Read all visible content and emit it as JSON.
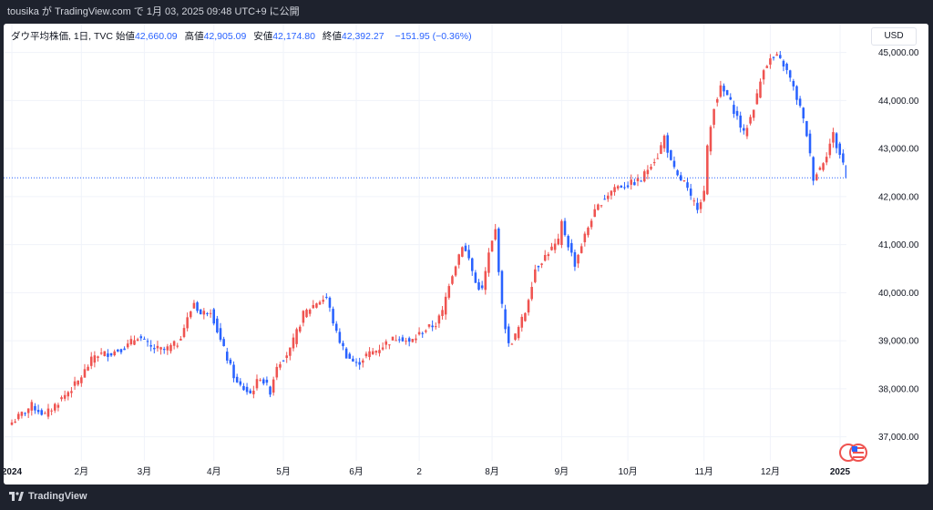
{
  "header": {
    "share_text": "tousika が TradingView.com で 1月 03, 2025 09:48 UTC+9 に公開"
  },
  "legend": {
    "symbol_text": "ダウ平均株価, 1日, TVC",
    "open_label": "始値",
    "open_value": "42,660.09",
    "high_label": "高値",
    "high_value": "42,905.09",
    "low_label": "安値",
    "low_value": "42,174.80",
    "close_label": "終値",
    "close_value": "42,392.27",
    "change_value": "−151.95 (−0.36%)"
  },
  "currency_label": "USD",
  "footer": {
    "brand": "TradingView"
  },
  "colors": {
    "up": "#ef5350",
    "down": "#2962ff",
    "background": "#1e222d",
    "panel": "#ffffff"
  },
  "chart_data": {
    "type": "candlestick",
    "symbol": "DJI",
    "last_price": 42392.27,
    "last_price_label": "42,392.27",
    "ylim": [
      36500,
      45600
    ],
    "y_ticks": [
      "37,000.00",
      "38,000.00",
      "39,000.00",
      "40,000.00",
      "41,000.00",
      "42,000.00",
      "43,000.00",
      "44,000.00",
      "45,000.00"
    ],
    "y_tick_values": [
      37000,
      38000,
      39000,
      40000,
      41000,
      42000,
      43000,
      44000,
      45000
    ],
    "x_ticks": [
      "2024",
      "2月",
      "3月",
      "4月",
      "5月",
      "6月",
      "2",
      "8月",
      "9月",
      "10月",
      "11月",
      "12月",
      "2025"
    ],
    "x_tick_index": [
      0,
      21,
      40,
      61,
      82,
      104,
      123,
      145,
      166,
      186,
      209,
      229,
      251
    ],
    "anchors": [
      [
        0,
        37300
      ],
      [
        6,
        37650
      ],
      [
        10,
        37450
      ],
      [
        15,
        37800
      ],
      [
        20,
        38150
      ],
      [
        25,
        38700
      ],
      [
        30,
        38750
      ],
      [
        35,
        38900
      ],
      [
        38,
        39100
      ],
      [
        42,
        38850
      ],
      [
        46,
        38800
      ],
      [
        50,
        38950
      ],
      [
        53,
        39450
      ],
      [
        55,
        39800
      ],
      [
        57,
        39550
      ],
      [
        60,
        39650
      ],
      [
        63,
        39000
      ],
      [
        66,
        38450
      ],
      [
        68,
        38100
      ],
      [
        72,
        37900
      ],
      [
        75,
        38250
      ],
      [
        78,
        37950
      ],
      [
        80,
        38500
      ],
      [
        84,
        38800
      ],
      [
        88,
        39550
      ],
      [
        92,
        39800
      ],
      [
        95,
        39900
      ],
      [
        98,
        39150
      ],
      [
        101,
        38700
      ],
      [
        104,
        38500
      ],
      [
        107,
        38700
      ],
      [
        110,
        38800
      ],
      [
        113,
        38950
      ],
      [
        117,
        39100
      ],
      [
        120,
        38950
      ],
      [
        124,
        39200
      ],
      [
        128,
        39350
      ],
      [
        130,
        39600
      ],
      [
        132,
        40200
      ],
      [
        134,
        40600
      ],
      [
        136,
        41000
      ],
      [
        138,
        40700
      ],
      [
        140,
        40200
      ],
      [
        142,
        40050
      ],
      [
        144,
        40800
      ],
      [
        146,
        41300
      ],
      [
        148,
        39700
      ],
      [
        150,
        38900
      ],
      [
        152,
        39100
      ],
      [
        155,
        39600
      ],
      [
        158,
        40500
      ],
      [
        162,
        40850
      ],
      [
        165,
        41050
      ],
      [
        166,
        41450
      ],
      [
        168,
        41000
      ],
      [
        170,
        40600
      ],
      [
        172,
        41000
      ],
      [
        175,
        41550
      ],
      [
        178,
        41900
      ],
      [
        182,
        42200
      ],
      [
        186,
        42250
      ],
      [
        190,
        42350
      ],
      [
        193,
        42700
      ],
      [
        195,
        42850
      ],
      [
        197,
        43250
      ],
      [
        199,
        42700
      ],
      [
        201,
        42400
      ],
      [
        203,
        42300
      ],
      [
        205,
        41950
      ],
      [
        207,
        41800
      ],
      [
        209,
        42100
      ],
      [
        210,
        43000
      ],
      [
        212,
        43900
      ],
      [
        214,
        44250
      ],
      [
        216,
        44100
      ],
      [
        219,
        43650
      ],
      [
        221,
        43300
      ],
      [
        223,
        43650
      ],
      [
        225,
        44100
      ],
      [
        227,
        44700
      ],
      [
        229,
        44850
      ],
      [
        231,
        44900
      ],
      [
        233,
        44750
      ],
      [
        235,
        44450
      ],
      [
        238,
        43850
      ],
      [
        240,
        43300
      ],
      [
        242,
        42400
      ],
      [
        244,
        42600
      ],
      [
        246,
        42900
      ],
      [
        248,
        43300
      ],
      [
        249,
        43050
      ],
      [
        251,
        42700
      ],
      [
        252,
        42392
      ]
    ]
  }
}
